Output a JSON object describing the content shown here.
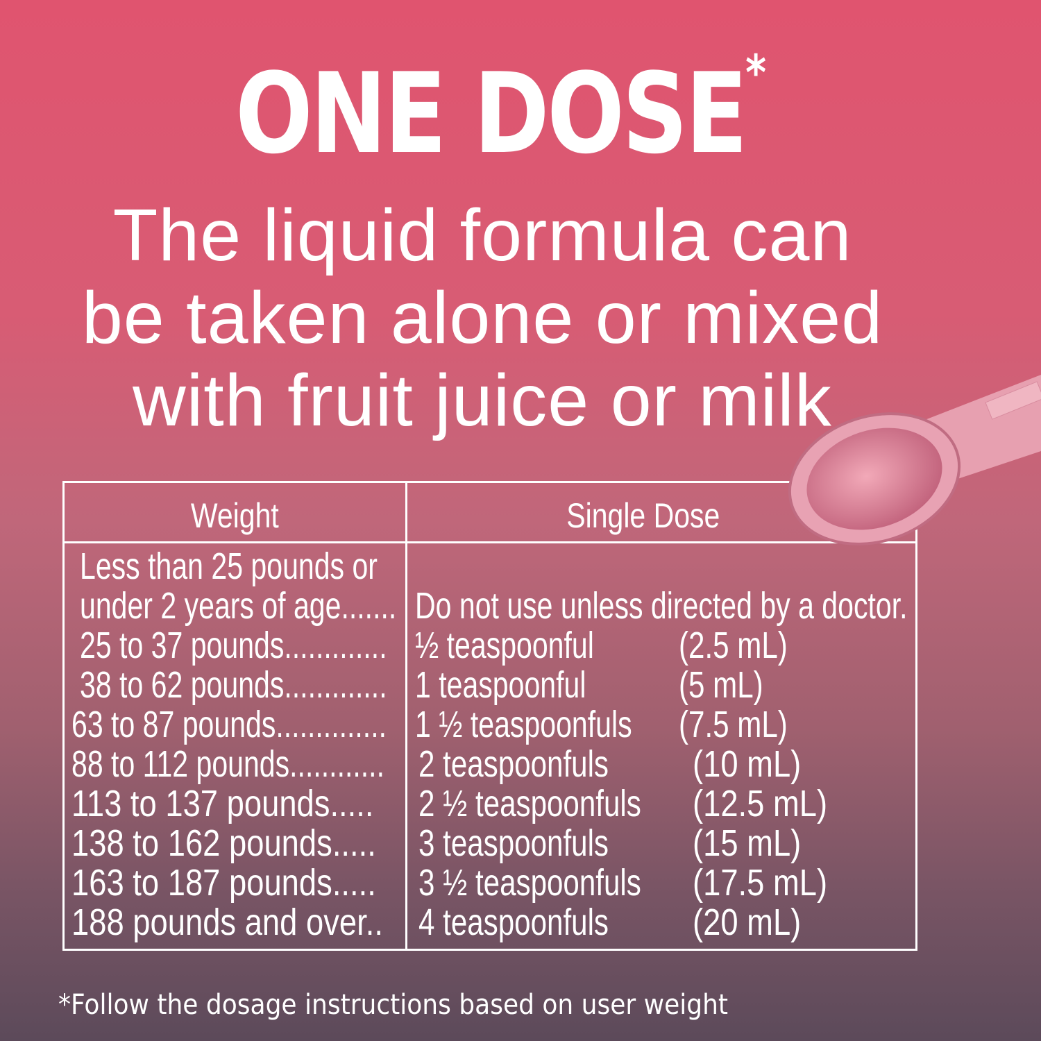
{
  "headline": {
    "title": "ONE DOSE",
    "asterisk": "*",
    "subtitle_lines": [
      "The liquid formula can",
      "be taken alone or mixed",
      "with fruit juice or milk"
    ]
  },
  "table": {
    "headers": [
      "Weight",
      "Single Dose"
    ],
    "rows": [
      {
        "weight": "Less than 25 pounds or",
        "dose": "",
        "ml": ""
      },
      {
        "weight": "under 2 years of age.......",
        "dose": "Do not use unless directed by a doctor.",
        "ml": ""
      },
      {
        "weight": "25 to 37 pounds.............",
        "dose": "½ teaspoonful",
        "ml": "(2.5 mL)"
      },
      {
        "weight": "38 to 62 pounds.............",
        "dose": "1 teaspoonful",
        "ml": "(5 mL)"
      },
      {
        "weight": "63 to 87 pounds..............",
        "dose": "1 ½ teaspoonfuls",
        "ml": "(7.5 mL)"
      },
      {
        "weight": "88 to 112 pounds............",
        "dose": "2 teaspoonfuls",
        "ml": "(10 mL)"
      },
      {
        "weight": "113 to 137 pounds.....",
        "dose": "2 ½ teaspoonfuls",
        "ml": "(12.5 mL)"
      },
      {
        "weight": "138 to 162 pounds.....",
        "dose": "3 teaspoonfuls",
        "ml": "(15 mL)"
      },
      {
        "weight": "163 to 187 pounds.....",
        "dose": "3 ½ teaspoonfuls",
        "ml": "(17.5 mL)"
      },
      {
        "weight": "188 pounds and over..",
        "dose": "4 teaspoonfuls",
        "ml": "(20 mL)"
      }
    ]
  },
  "footnote": "*Follow the dosage instructions based on user weight",
  "image": {
    "icon": "measuring-spoon-icon"
  },
  "colors": {
    "top": "#e0546f",
    "bottom": "#5c4a5a",
    "text": "#ffffff"
  }
}
